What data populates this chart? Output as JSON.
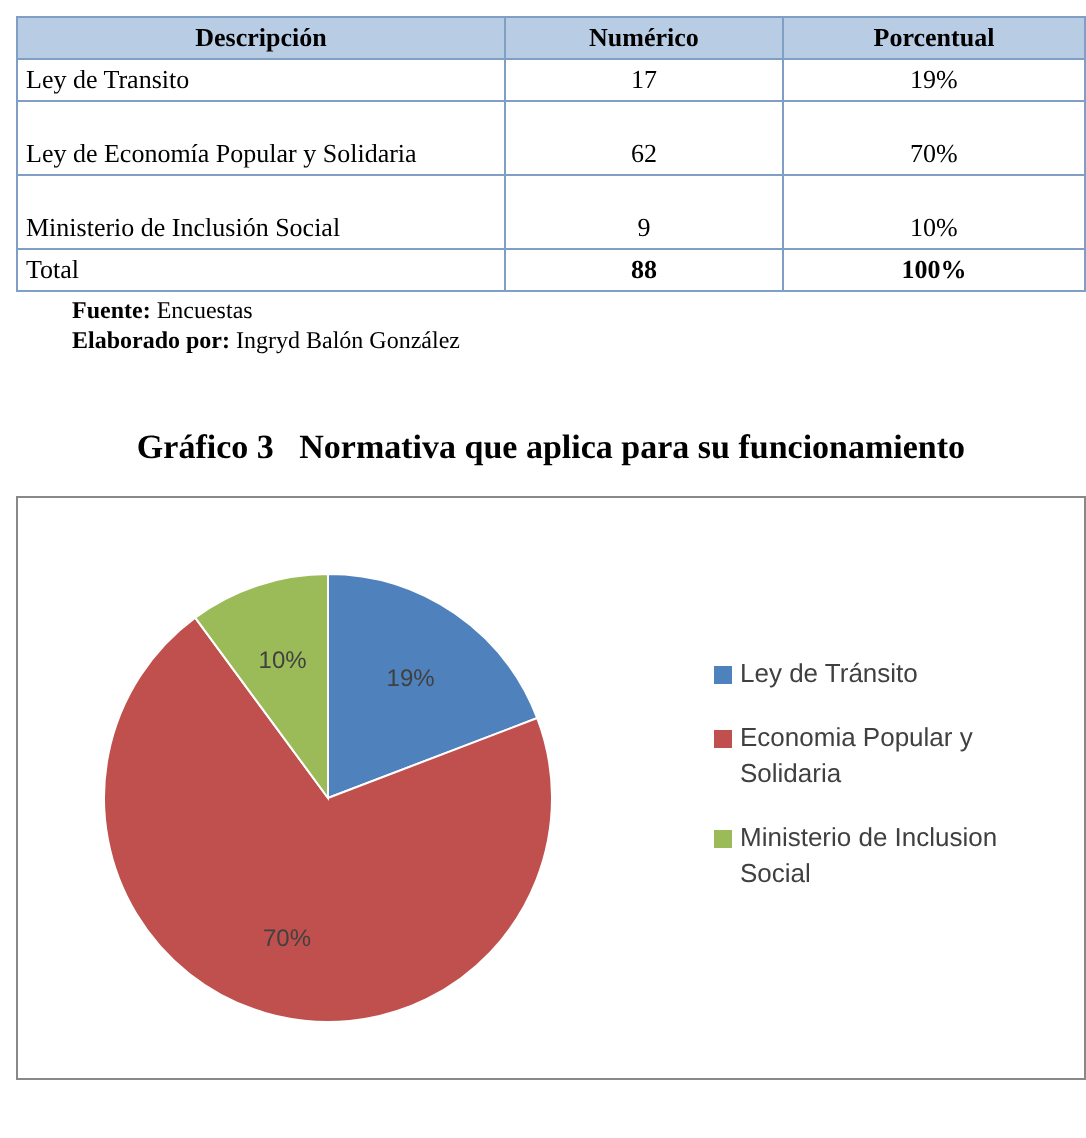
{
  "chart_data": [
    {
      "type": "other",
      "xlabel": "Descripción",
      "categories": [
        "Ley de Transito",
        "Ley de Economía Popular y Solidaria",
        "Ministerio de Inclusión Social",
        "Total"
      ],
      "series": [
        {
          "name": "Numérico",
          "values": [
            17,
            62,
            9,
            88
          ]
        },
        {
          "name": "Porcentual",
          "values": [
            19,
            70,
            10,
            100
          ],
          "value_labels": [
            "19%",
            "70%",
            "10%",
            "100%"
          ]
        }
      ],
      "annotations": [
        "Fuente: Encuestas",
        "Elaborado por: Ingryd Balón González"
      ],
      "data_labels": true
    },
    {
      "type": "pie",
      "title": "Gráfico 3   Normativa que aplica para su funcionamiento",
      "categories": [
        "Ley de Tránsito",
        "Economia Popular y Solidaria",
        "Ministerio de Inclusion Social"
      ],
      "values": [
        19,
        70,
        10
      ],
      "colors": [
        "#4f81bd",
        "#c0504d",
        "#9bbb59"
      ],
      "value_labels": [
        "19%",
        "70%",
        "10%"
      ],
      "legend": "right"
    }
  ]
}
